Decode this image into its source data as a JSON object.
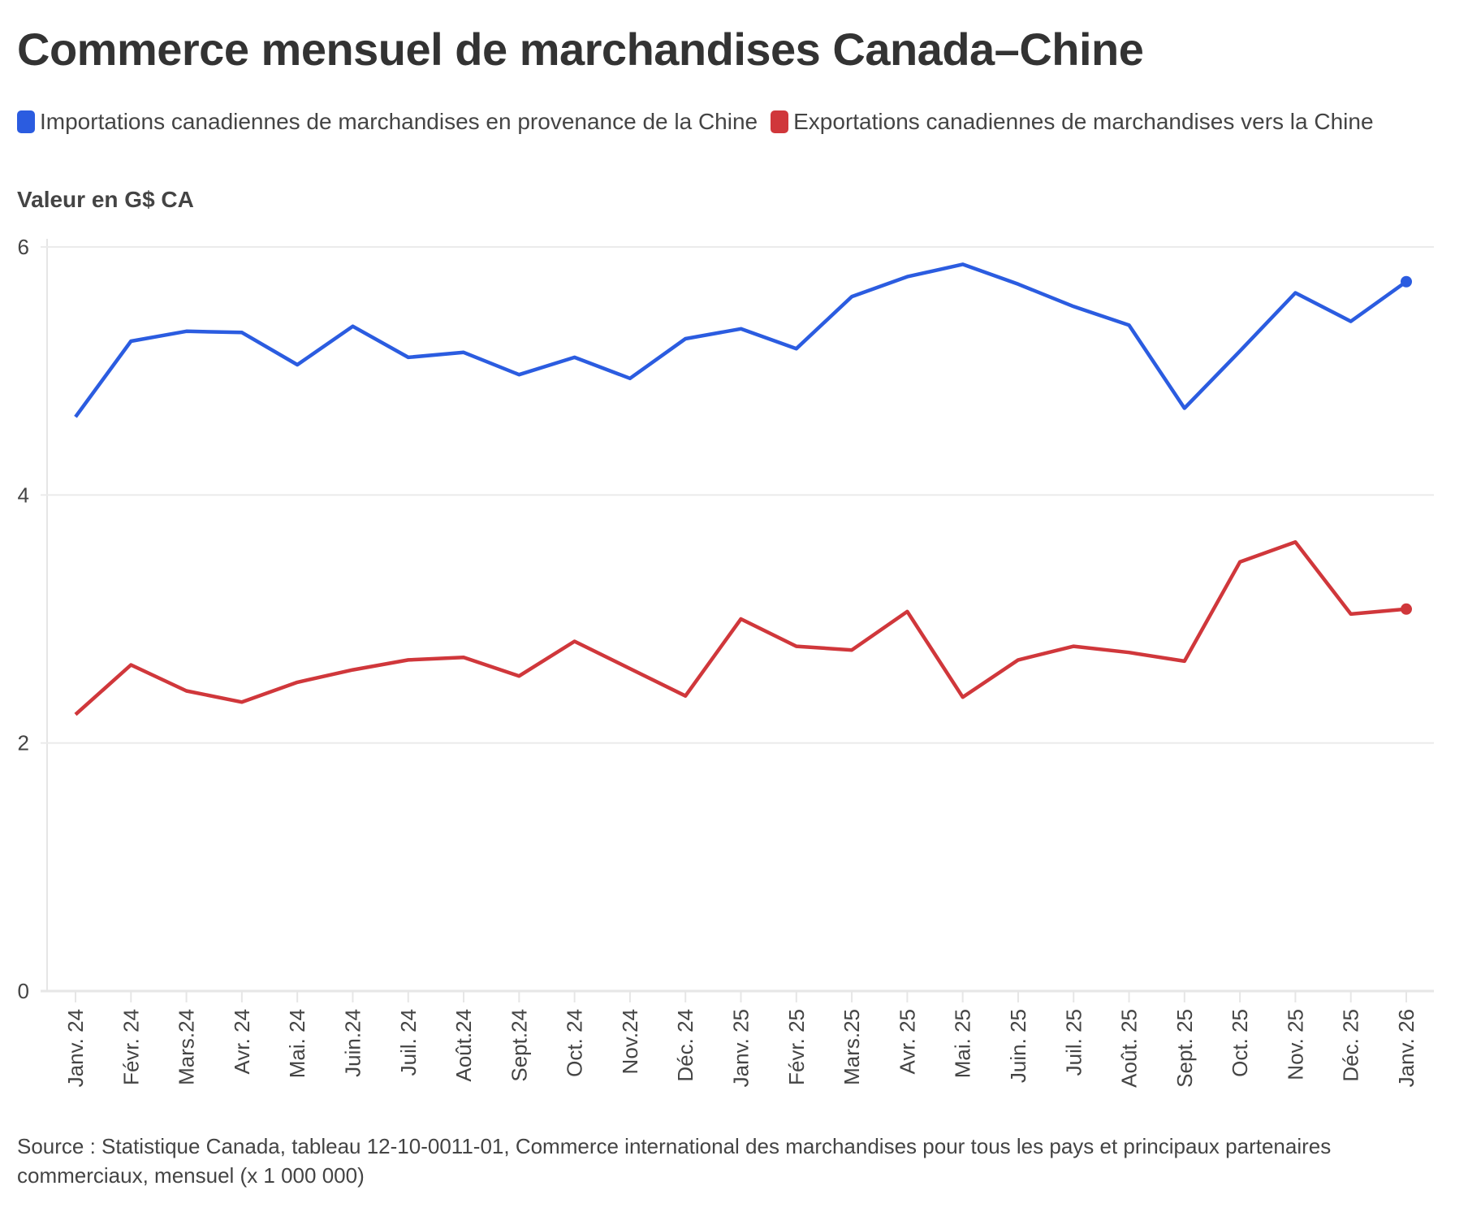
{
  "chart_data": {
    "type": "line",
    "title": "Commerce mensuel de marchandises Canada–Chine",
    "ylabel": "Valeur en G$ CA",
    "xlabel": "",
    "ylim": [
      0,
      6
    ],
    "yticks": [
      "0",
      "2",
      "4",
      "6"
    ],
    "grid": true,
    "legend_position": "top-left",
    "categories": [
      "Janv. 24",
      "Févr. 24",
      "Mars.24",
      "Avr. 24",
      "Mai. 24",
      "Juin.24",
      "Juil. 24",
      "Août.24",
      "Sept.24",
      "Oct. 24",
      "Nov.24",
      "Déc. 24",
      "Janv. 25",
      "Févr. 25",
      "Mars.25",
      "Avr. 25",
      "Mai. 25",
      "Juin. 25",
      "Juil. 25",
      "Août. 25",
      "Sept. 25",
      "Oct. 25",
      "Nov. 25",
      "Déc. 25",
      "Janv. 26"
    ],
    "series": [
      {
        "name": "Importations canadiennes de marchandises en provenance de la Chine",
        "color": "#2b5ce0",
        "values": [
          4.63,
          5.24,
          5.32,
          5.31,
          5.05,
          5.36,
          5.11,
          5.15,
          4.97,
          5.11,
          4.94,
          5.26,
          5.34,
          5.18,
          5.6,
          5.76,
          5.86,
          5.7,
          5.52,
          5.37,
          4.7,
          5.16,
          5.63,
          5.4,
          5.72
        ]
      },
      {
        "name": "Exportations canadiennes de marchandises vers la Chine",
        "color": "#d0373b",
        "values": [
          2.23,
          2.63,
          2.42,
          2.33,
          2.49,
          2.59,
          2.67,
          2.69,
          2.54,
          2.82,
          2.6,
          2.38,
          3.0,
          2.78,
          2.75,
          3.06,
          2.37,
          2.67,
          2.78,
          2.73,
          2.66,
          3.46,
          3.62,
          3.04,
          3.08
        ]
      }
    ]
  },
  "source": "Source : Statistique Canada, tableau 12-10-0011-01, Commerce international des marchandises pour tous les pays et principaux partenaires commerciaux, mensuel (x 1 000 000)"
}
